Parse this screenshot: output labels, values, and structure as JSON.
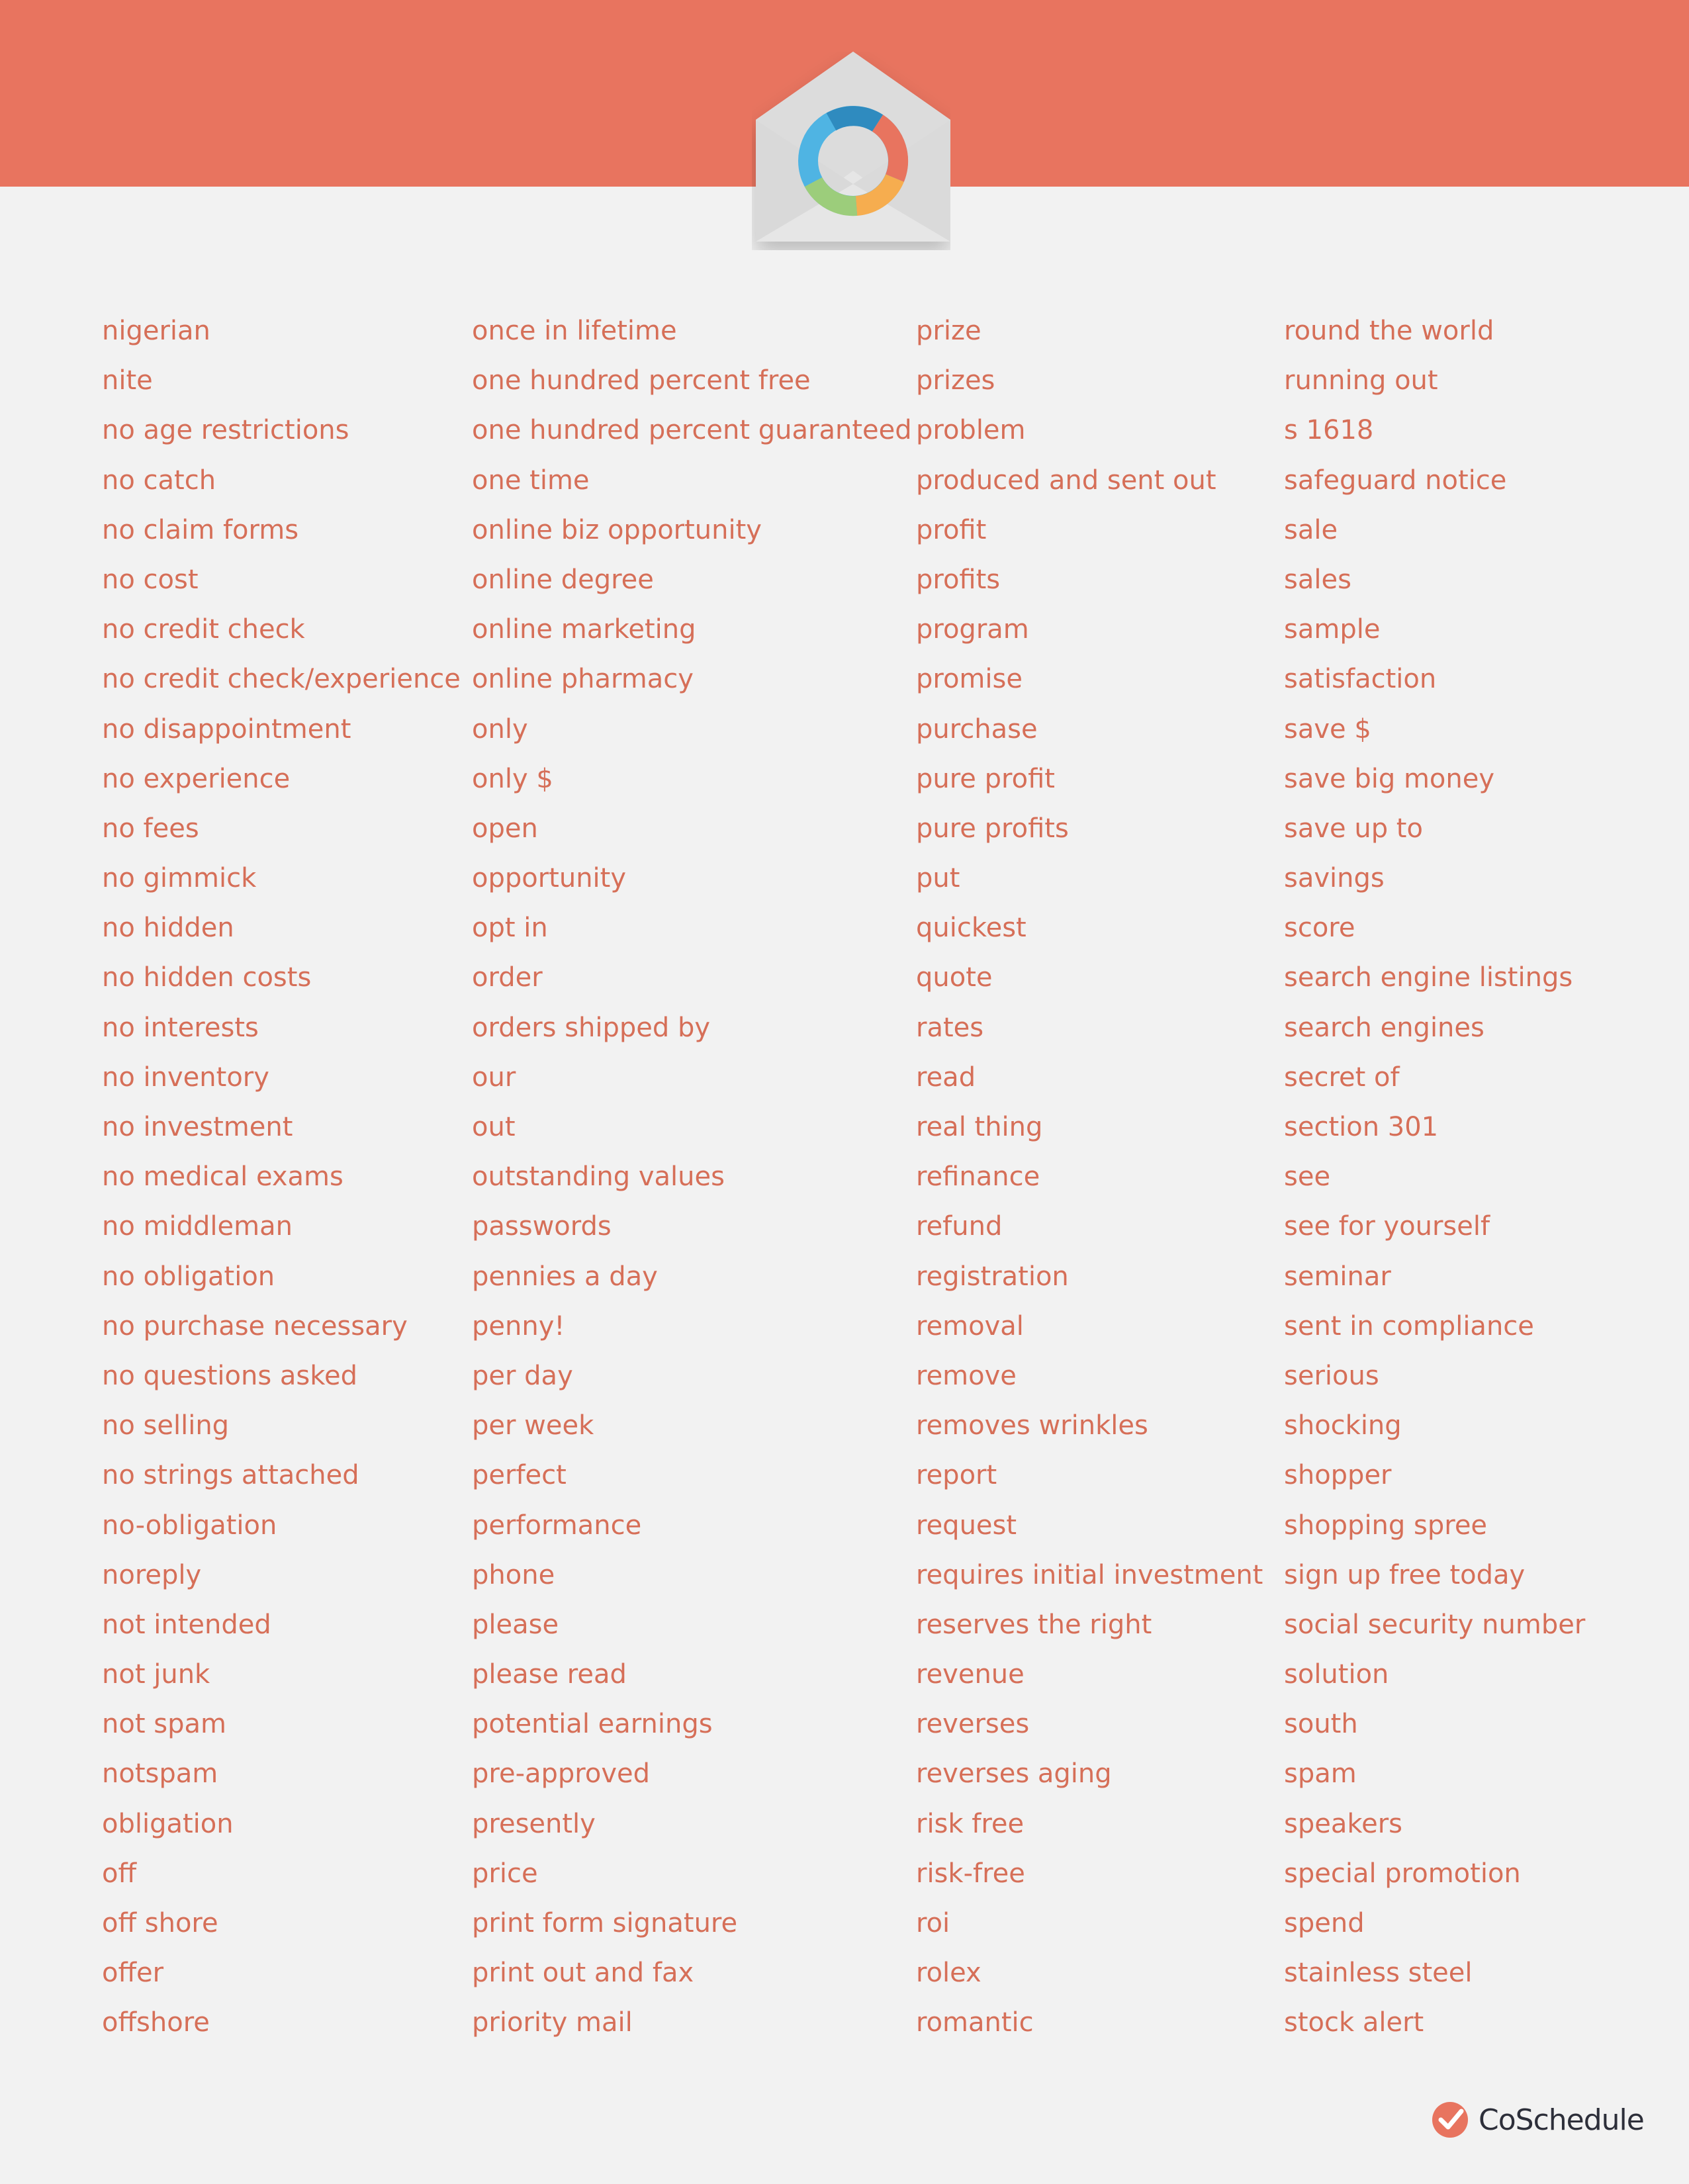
{
  "colors": {
    "banner": "#e8745f",
    "background": "#f2f2f2",
    "text": "#d66f58",
    "brand_text": "#2d2f3a",
    "logo_segments": [
      "#2f8bbf",
      "#e8745f",
      "#f6ad4f",
      "#9ccd7b",
      "#4fb4e3"
    ]
  },
  "icons": {
    "header": "envelope-donut-logo-icon",
    "brand": "checkmark-badge-icon"
  },
  "columns": [
    [
      "nigerian",
      "nite",
      "no age restrictions",
      "no catch",
      "no claim forms",
      "no cost",
      "no credit check",
      "no credit check/experience",
      "no disappointment",
      "no experience",
      "no fees",
      "no gimmick",
      "no hidden",
      "no hidden costs",
      "no interests",
      "no inventory",
      "no investment",
      "no medical exams",
      "no middleman",
      "no obligation",
      "no purchase necessary",
      "no questions asked",
      "no selling",
      "no strings attached",
      "no-obligation",
      "noreply",
      "not intended",
      "not junk",
      "not spam",
      "notspam",
      "obligation",
      "off",
      "off shore",
      "offer",
      "offshore"
    ],
    [
      "once in lifetime",
      "one hundred percent free",
      "one hundred percent guaranteed",
      "one time",
      "online biz opportunity",
      "online degree",
      "online marketing",
      "online pharmacy",
      "only",
      "only $",
      "open",
      "opportunity",
      "opt in",
      "order",
      "orders shipped by",
      "our",
      "out",
      "outstanding values",
      "passwords",
      "pennies a day",
      "penny!",
      "per day",
      "per week",
      "perfect",
      "performance",
      "phone",
      "please",
      "please read",
      "potential earnings",
      "pre-approved",
      "presently",
      "price",
      "print form signature",
      "print out and fax",
      "priority mail"
    ],
    [
      "prize",
      "prizes",
      "problem",
      "produced and sent out",
      "profit",
      "profits",
      "program",
      "promise",
      "purchase",
      "pure profit",
      "pure profits",
      "put",
      "quickest",
      "quote",
      "rates",
      "read",
      "real thing",
      "refinance",
      "refund",
      "registration",
      "removal",
      "remove",
      "removes wrinkles",
      "report",
      "request",
      "requires initial investment",
      "reserves the right",
      "revenue",
      "reverses",
      "reverses aging",
      "risk free",
      "risk-free",
      "roi",
      "rolex",
      "romantic"
    ],
    [
      "round the world",
      "running out",
      "s 1618",
      "safeguard notice",
      "sale",
      "sales",
      "sample",
      "satisfaction",
      "save $",
      "save big money",
      "save up to",
      "savings",
      "score",
      "search engine listings",
      "search engines",
      "secret of",
      "section 301",
      "see",
      "see for yourself",
      "seminar",
      "sent in compliance",
      "serious",
      "shocking",
      "shopper",
      "shopping spree",
      "sign up free today",
      "social security number",
      "solution",
      "south",
      "spam",
      "speakers",
      "special promotion",
      "spend",
      "stainless steel",
      "stock alert"
    ]
  ],
  "brand": {
    "name": "CoSchedule"
  }
}
